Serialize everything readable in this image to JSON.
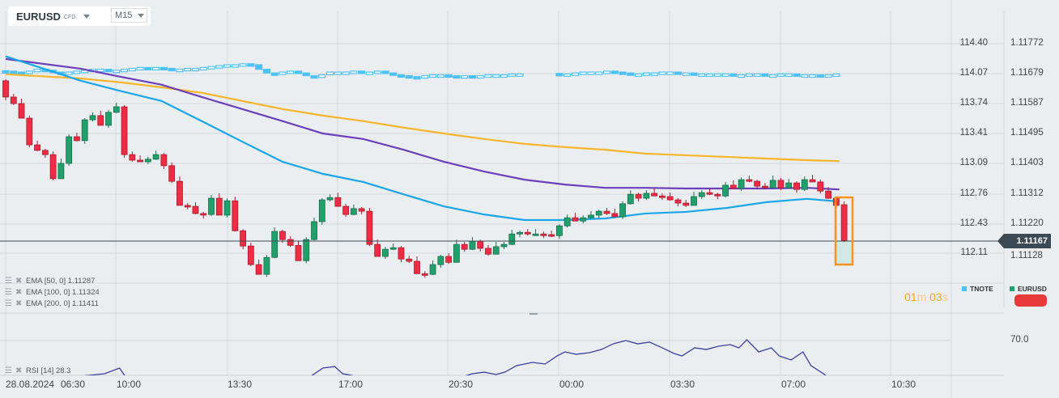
{
  "header": {
    "symbol": "EURUSD",
    "instrument_type": "CFD",
    "timeframe": "M15"
  },
  "price_axis": {
    "right": [
      "1.11772",
      "1.11679",
      "1.11587",
      "1.11495",
      "1.11403",
      "1.11312",
      "1.11220",
      "1.11128"
    ],
    "left_tnote": [
      "114.40",
      "114.07",
      "113.74",
      "113.41",
      "113.09",
      "112.76",
      "112.43",
      "112.11"
    ],
    "current_price": "1.11167"
  },
  "rsi_axis": {
    "level": "70.0"
  },
  "time_axis": [
    "28.08.2024",
    "06:30",
    "10:00",
    "13:30",
    "17:00",
    "20:30",
    "00:00",
    "03:30",
    "07:00",
    "10:30"
  ],
  "indicators": [
    {
      "label": "EMA [50, 0] 1.11287"
    },
    {
      "label": "EMA [100, 0] 1.11324"
    },
    {
      "label": "EMA [200, 0] 1.11411"
    },
    {
      "label": "RSI [14] 28.3"
    }
  ],
  "legend": {
    "tnote": "TNOTE",
    "eurusd": "EURUSD"
  },
  "timer": {
    "min": "01",
    "min_unit": "m",
    "sec": "03",
    "sec_unit": "s"
  },
  "colors": {
    "up": "#21a06c",
    "down": "#f02b44",
    "ema50": "#1ba6ea",
    "ema100": "#6b3fbd",
    "ema200": "#f7b52c",
    "tnote": "#4ec2f7",
    "rsi": "#3b3fa3",
    "highlight": "#f7931e"
  },
  "chart_data": {
    "type": "candlestick",
    "eurusd_first_open": 1.11658,
    "eurusd_last_open": 1.11277,
    "eurusd_closes": [
      1.11608,
      1.11588,
      1.11543,
      1.11461,
      1.11444,
      1.11431,
      1.11357,
      1.11404,
      1.11486,
      1.11474,
      1.11538,
      1.11551,
      1.11521,
      1.11561,
      1.11578,
      1.11431,
      1.11414,
      1.11409,
      1.11417,
      1.11431,
      1.11397,
      1.11349,
      1.11275,
      1.11272,
      1.1125,
      1.11247,
      1.11297,
      1.11245,
      1.11289,
      1.11197,
      1.1115,
      1.11093,
      1.11063,
      1.11115,
      1.11195,
      1.1117,
      1.11152,
      1.11105,
      1.1117,
      1.11225,
      1.11292,
      1.11299,
      1.11272,
      1.11247,
      1.11265,
      1.11257,
      1.11155,
      1.11118,
      1.1114,
      1.11145,
      1.1111,
      1.11103,
      1.11065,
      1.11063,
      1.11093,
      1.11118,
      1.111,
      1.11155,
      1.1114,
      1.11165,
      1.11143,
      1.11125,
      1.11148,
      1.11155,
      1.11187,
      1.11192,
      1.11187,
      1.11187,
      1.11185,
      1.11182,
      1.11212,
      1.11237,
      1.11227,
      1.11237,
      1.11245,
      1.11257,
      1.1125,
      1.1124,
      1.1128,
      1.11309,
      1.11297,
      1.11312,
      1.11304,
      1.11302,
      1.11292,
      1.11282,
      1.11275,
      1.11302,
      1.11314,
      1.11309,
      1.11304,
      1.11337,
      1.11327,
      1.11354,
      1.11349,
      1.11334,
      1.11329,
      1.11352,
      1.11329,
      1.11344,
      1.11324,
      1.11354,
      1.11347,
      1.11319,
      1.11297,
      1.11275,
      1.11167
    ],
    "ema_index": [
      0,
      9.5,
      14.6,
      19.7,
      24.8,
      29.9,
      35,
      40.1,
      45.2,
      50.3,
      55.4,
      60.5,
      65.6,
      70.7,
      75.8,
      80.9,
      86,
      91.1,
      96.2,
      101.3,
      105.4
    ],
    "ema50": [
      1.11733,
      1.11658,
      1.11626,
      1.11596,
      1.11534,
      1.11471,
      1.11409,
      1.11372,
      1.11347,
      1.11309,
      1.11272,
      1.11247,
      1.1123,
      1.1123,
      1.11235,
      1.1125,
      1.11255,
      1.11267,
      1.11285,
      1.11295,
      1.11287
    ],
    "ema100": [
      1.11725,
      1.11695,
      1.1167,
      1.11646,
      1.11608,
      1.11571,
      1.11534,
      1.11496,
      1.11479,
      1.11446,
      1.11409,
      1.11379,
      1.11354,
      1.11339,
      1.11329,
      1.11329,
      1.11327,
      1.11327,
      1.11327,
      1.11329,
      1.11324
    ],
    "ema200": [
      1.11678,
      1.11665,
      1.11653,
      1.11638,
      1.11621,
      1.11596,
      1.11571,
      1.11551,
      1.11534,
      1.11514,
      1.11496,
      1.11479,
      1.11464,
      1.11454,
      1.11446,
      1.11434,
      1.11429,
      1.11424,
      1.11419,
      1.11414,
      1.11411
    ],
    "tnote_seg1_start": 0,
    "tnote_seg1": [
      114.1,
      114.09,
      114.08,
      114.1,
      114.12,
      114.11,
      114.09,
      114.08,
      114.09,
      114.1,
      114.11,
      114.12,
      114.12,
      114.11,
      114.11,
      114.12,
      114.13,
      114.14,
      114.13,
      114.14,
      114.13,
      114.12,
      114.12,
      114.13,
      114.13,
      114.14,
      114.15,
      114.16,
      114.17,
      114.17,
      114.18,
      114.17,
      114.12,
      114.08,
      114.07,
      114.09,
      114.1,
      114.08,
      114.05,
      114.03,
      114.06,
      114.09,
      114.09,
      114.09,
      114.1,
      114.08,
      114.09,
      114.1,
      114.08,
      114.06,
      114.05,
      114.04,
      114.03,
      114.05,
      114.06,
      114.06,
      114.05,
      114.04,
      114.05,
      114.04,
      114.05,
      114.06,
      114.06,
      114.06,
      114.07,
      114.07
    ],
    "tnote_seg2_start": 70,
    "tnote_seg2": [
      114.07,
      114.07,
      114.08,
      114.09,
      114.09,
      114.09,
      114.1,
      114.09,
      114.08,
      114.07,
      114.07,
      114.08,
      114.08,
      114.09,
      114.09,
      114.08,
      114.08,
      114.07,
      114.07,
      114.07,
      114.07,
      114.07,
      114.06,
      114.06,
      114.07,
      114.07,
      114.06,
      114.06,
      114.07,
      114.07,
      114.06,
      114.06,
      114.06,
      114.05,
      114.06,
      114.07
    ],
    "rsi": [
      [
        0,
        30
      ],
      [
        9.5,
        38.6
      ],
      [
        12.5,
        40.7
      ],
      [
        14.4,
        45.7
      ],
      [
        15.1,
        38.6
      ],
      [
        17,
        32
      ],
      [
        38,
        32
      ],
      [
        38.6,
        38.6
      ],
      [
        40.1,
        45.7
      ],
      [
        41.6,
        47.1
      ],
      [
        42.6,
        40.7
      ],
      [
        44.2,
        38.6
      ],
      [
        46,
        33
      ],
      [
        56,
        33
      ],
      [
        58,
        38.6
      ],
      [
        59,
        40.7
      ],
      [
        60.5,
        42.1
      ],
      [
        62,
        40
      ],
      [
        63.1,
        42.1
      ],
      [
        64.6,
        47.9
      ],
      [
        66.6,
        50.7
      ],
      [
        68.2,
        49.3
      ],
      [
        69.7,
        56.4
      ],
      [
        70.7,
        60
      ],
      [
        72.1,
        57.9
      ],
      [
        73.8,
        59.3
      ],
      [
        75.3,
        62.1
      ],
      [
        76.8,
        67.1
      ],
      [
        78.4,
        70
      ],
      [
        79.9,
        67.1
      ],
      [
        81.4,
        68.6
      ],
      [
        83,
        63.6
      ],
      [
        84.5,
        58.6
      ],
      [
        85.5,
        56.4
      ],
      [
        87.1,
        63.6
      ],
      [
        88.6,
        62.1
      ],
      [
        90.1,
        65
      ],
      [
        91.6,
        66.4
      ],
      [
        92.7,
        63.6
      ],
      [
        93.7,
        70.7
      ],
      [
        95.2,
        60
      ],
      [
        96.8,
        63.6
      ],
      [
        97.8,
        56.4
      ],
      [
        99.3,
        52.9
      ],
      [
        100.8,
        60
      ],
      [
        101.8,
        47.9
      ],
      [
        103.4,
        40.7
      ],
      [
        104.4,
        35
      ],
      [
        105.4,
        28.3
      ]
    ],
    "price_range": [
      1.11128,
      1.11772
    ],
    "tnote_range": [
      112.11,
      114.4
    ]
  }
}
